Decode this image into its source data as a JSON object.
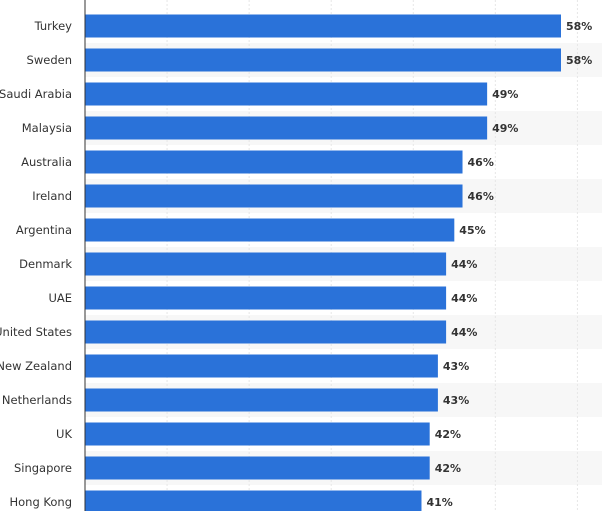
{
  "chart_data": {
    "type": "bar",
    "orientation": "horizontal",
    "categories": [
      "Turkey",
      "Sweden",
      "Saudi Arabia",
      "Malaysia",
      "Australia",
      "Ireland",
      "Argentina",
      "Denmark",
      "UAE",
      "United States",
      "New Zealand",
      "Netherlands",
      "UK",
      "Singapore",
      "Hong Kong"
    ],
    "values": [
      58,
      58,
      49,
      49,
      46,
      46,
      45,
      44,
      44,
      44,
      43,
      43,
      42,
      42,
      41
    ],
    "value_suffix": "%",
    "title": "",
    "xlabel": "",
    "ylabel": "",
    "xlim": [
      0,
      60
    ],
    "grid": true,
    "bar_color": "#2a72d9",
    "stripe_color": "#f7f7f7",
    "grid_color": "#e6e6e6"
  }
}
